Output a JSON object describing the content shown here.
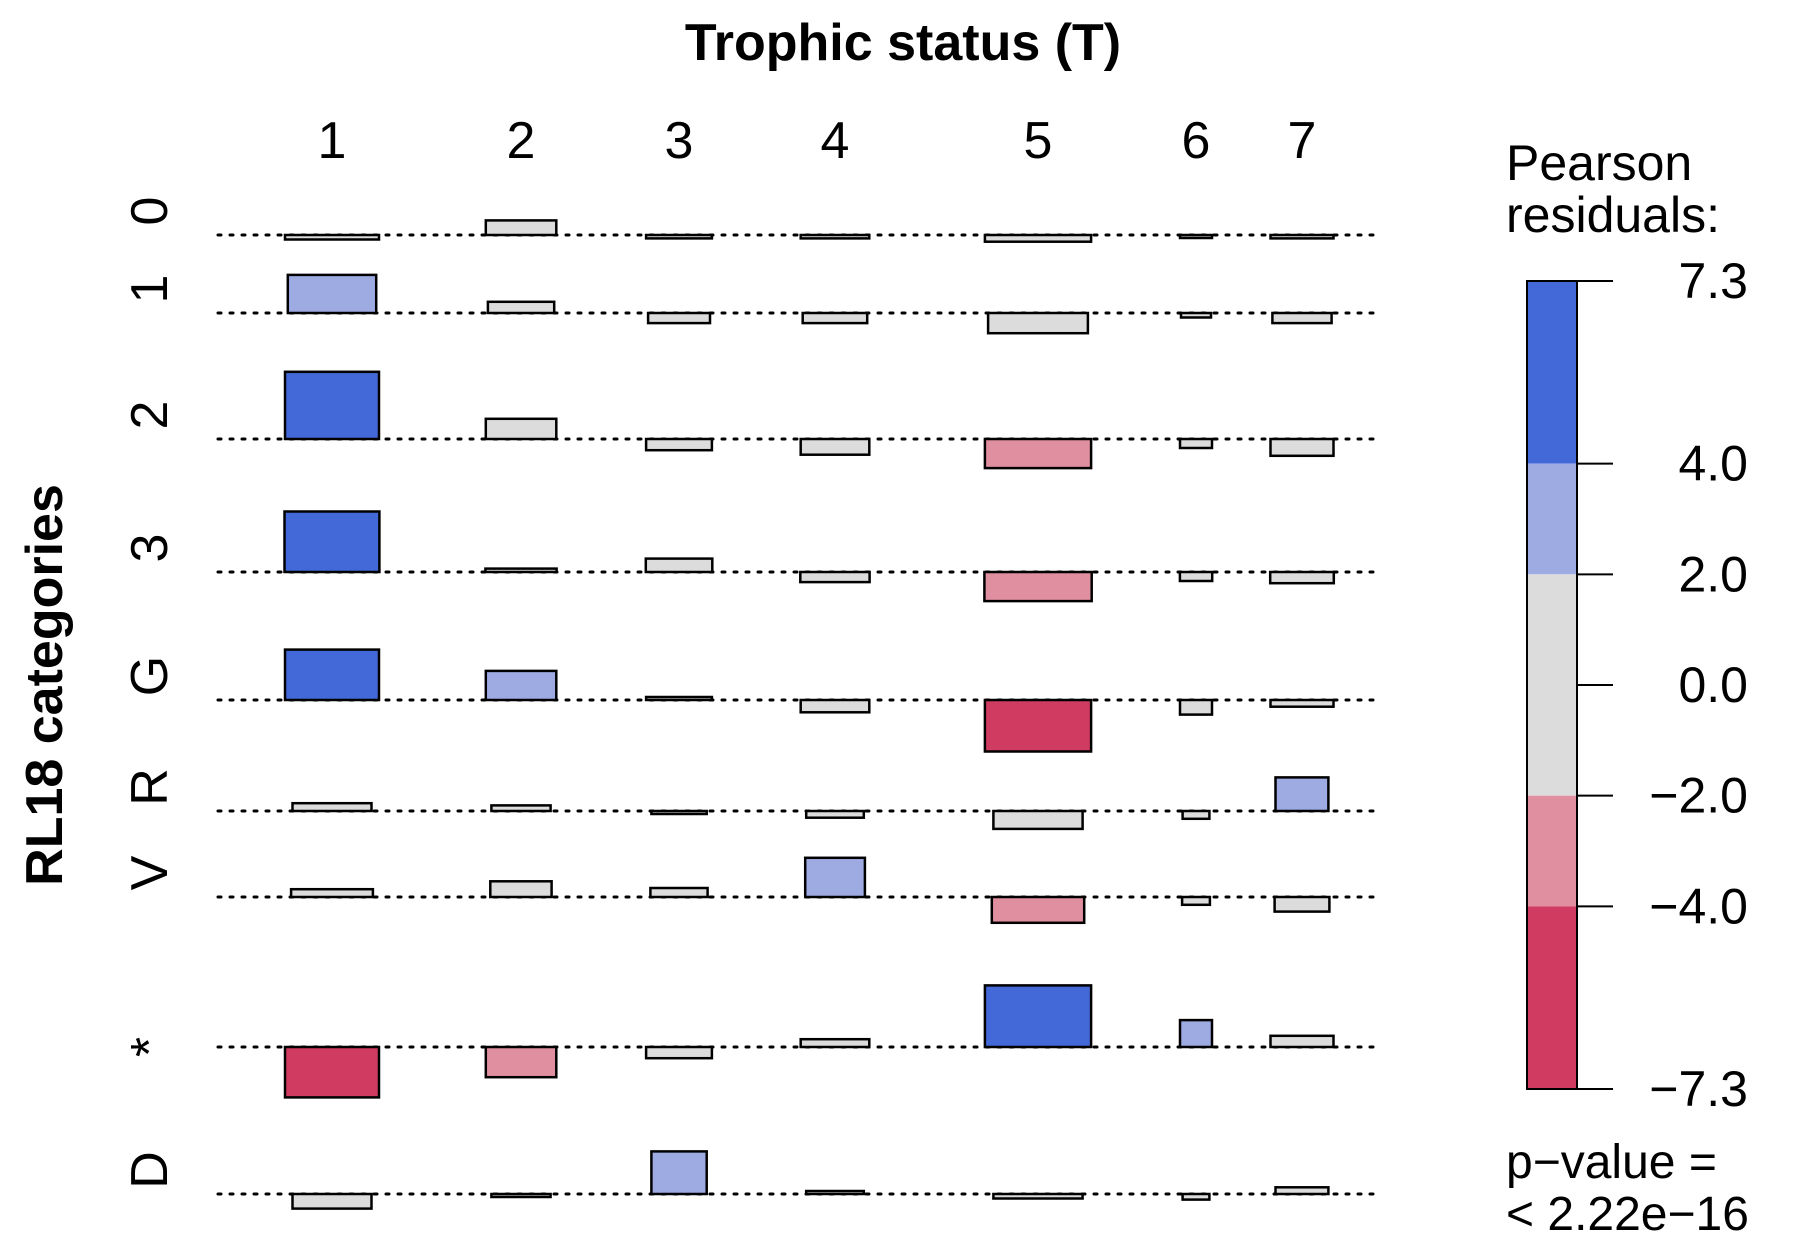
{
  "chart_data": {
    "type": "association",
    "title": "Trophic status (T)",
    "xlabel": "Trophic status (T)",
    "ylabel": "RL18 categories",
    "columns": [
      "1",
      "2",
      "3",
      "4",
      "5",
      "6",
      "7"
    ],
    "rows": [
      "0",
      "1",
      "2",
      "3",
      "G",
      "R",
      "V",
      "*",
      "D"
    ],
    "residuals": [
      [
        -0.4,
        1.3,
        -0.3,
        -0.3,
        -0.6,
        -0.2,
        -0.3
      ],
      [
        3.4,
        1.0,
        -0.9,
        -0.9,
        -1.8,
        -0.4,
        -0.9
      ],
      [
        6.0,
        1.8,
        -1.0,
        -1.4,
        -2.6,
        -0.8,
        -1.5
      ],
      [
        5.4,
        0.3,
        1.2,
        -0.9,
        -2.6,
        -0.8,
        -1.0
      ],
      [
        4.5,
        2.6,
        0.1,
        -1.1,
        -4.6,
        -1.3,
        -0.6
      ],
      [
        0.7,
        0.5,
        -0.1,
        -0.6,
        -1.6,
        -0.7,
        3.0
      ],
      [
        0.7,
        1.4,
        0.8,
        3.5,
        -2.3,
        -0.7,
        -1.3
      ],
      [
        -4.5,
        -2.7,
        -1.0,
        0.7,
        5.5,
        2.4,
        1.0
      ],
      [
        -1.3,
        -0.1,
        3.8,
        0.2,
        -0.4,
        -0.5,
        0.6
      ]
    ],
    "column_weights": [
      1.0,
      0.75,
      0.7,
      0.73,
      1.13,
      0.34,
      0.67
    ],
    "row_weights": [
      1.0,
      0.94,
      1.0,
      1.01,
      1.0,
      0.84,
      0.87,
      1.0,
      0.84
    ],
    "legend": {
      "title": "Pearson\nresiduals:",
      "title_lines": [
        "Pearson",
        "residuals:"
      ],
      "ticks": [
        "7.3",
        "4.0",
        "2.0",
        "0.0",
        "−2.0",
        "−4.0",
        "−7.3"
      ],
      "tick_values": [
        7.3,
        4.0,
        2.0,
        0.0,
        -2.0,
        -4.0,
        -7.3
      ],
      "breaks": [
        {
          "from": 4.0,
          "to": 7.3,
          "color": "#4369d9"
        },
        {
          "from": 2.0,
          "to": 4.0,
          "color": "#9eabe3"
        },
        {
          "from": -2.0,
          "to": 2.0,
          "color": "#dcdcdc"
        },
        {
          "from": -4.0,
          "to": -2.0,
          "color": "#e08fa0"
        },
        {
          "from": -7.3,
          "to": -4.0,
          "color": "#d03b62"
        }
      ],
      "pvalue_lines": [
        "p−value =",
        "< 2.22e−16"
      ]
    }
  }
}
